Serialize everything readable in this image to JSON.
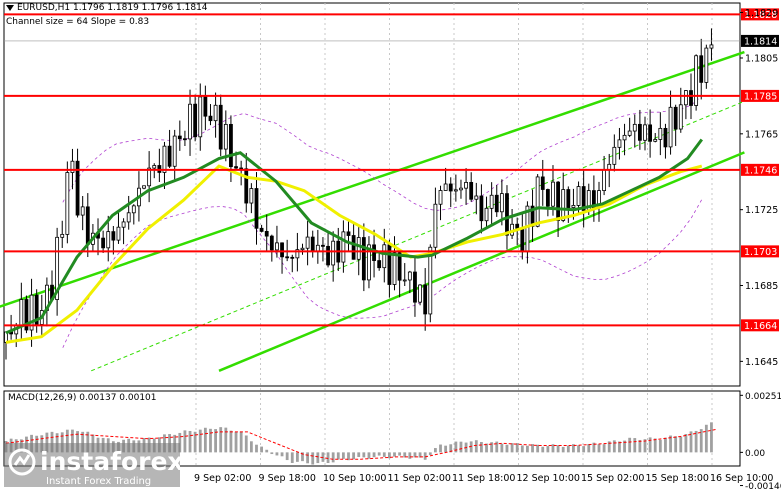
{
  "header": {
    "symbol_line": "EURUSD,H1  1.1796 1.1819 1.1796 1.1814",
    "channel_line": "Channel size = 64 Slope = 0.83"
  },
  "macd_header": "MACD(12,26,9) 0.00137 0.00101",
  "watermark": {
    "brand": "instaforex",
    "tagline": "Instant Forex Trading"
  },
  "colors": {
    "background": "#ffffff",
    "candle": "#000000",
    "level": "#ff0000",
    "channel": "#33dd00",
    "ma_slow": "#228b22",
    "ma_fast": "#f0f000",
    "envelope": "#b040d0",
    "macd_hist": "#a0a0a0",
    "macd_signal": "#ff0000",
    "price_tag": "#000000"
  },
  "chart_data": {
    "type": "candlestick",
    "symbol": "EURUSD",
    "timeframe": "H1",
    "ylim": [
      1.1632,
      1.1834
    ],
    "y_ticks": [
      "1.1829",
      "1.1805",
      "1.1765",
      "1.1725",
      "1.1685",
      "1.1645"
    ],
    "x_ticks": [
      "9 Sep 02:00",
      "9 Sep 18:00",
      "10 Sep 10:00",
      "11 Sep 02:00",
      "11 Sep 18:00",
      "12 Sep 10:00",
      "15 Sep 02:00",
      "15 Sep 18:00",
      "16 Sep 10:00"
    ],
    "levels": [
      {
        "value": 1.1828,
        "label": "1.1828"
      },
      {
        "value": 1.1785,
        "label": "1.1785"
      },
      {
        "value": 1.1746,
        "label": "1.1746"
      },
      {
        "value": 1.1703,
        "label": "1.1703"
      },
      {
        "value": 1.1664,
        "label": "1.1664"
      }
    ],
    "current_price": {
      "value": 1.1814,
      "label": "1.1814"
    },
    "channel": {
      "upper": [
        [
          0,
          1.1675
        ],
        [
          100,
          1.1803
        ]
      ],
      "lower": [
        [
          30,
          1.164
        ],
        [
          100,
          1.1749
        ]
      ],
      "middle": [
        [
          12,
          1.164
        ],
        [
          100,
          1.1776
        ]
      ]
    },
    "candles_x_range": [
      0,
      100
    ],
    "close_path": [
      [
        0,
        1.1655
      ],
      [
        1.5,
        1.1668
      ],
      [
        3,
        1.1672
      ],
      [
        4.5,
        1.1669
      ],
      [
        6,
        1.168
      ],
      [
        7.5,
        1.1705
      ],
      [
        9,
        1.1755
      ],
      [
        10.5,
        1.172
      ],
      [
        12,
        1.171
      ],
      [
        14,
        1.1708
      ],
      [
        16,
        1.1715
      ],
      [
        18,
        1.1728
      ],
      [
        20,
        1.1745
      ],
      [
        22,
        1.175
      ],
      [
        24,
        1.176
      ],
      [
        26,
        1.1772
      ],
      [
        28,
        1.1778
      ],
      [
        30,
        1.177
      ],
      [
        32,
        1.175
      ],
      [
        34,
        1.1735
      ],
      [
        36,
        1.1712
      ],
      [
        38,
        1.1705
      ],
      [
        40,
        1.1698
      ],
      [
        42,
        1.1708
      ],
      [
        44,
        1.1705
      ],
      [
        46,
        1.17
      ],
      [
        48,
        1.1712
      ],
      [
        50,
        1.1698
      ],
      [
        52,
        1.17
      ],
      [
        54,
        1.1696
      ],
      [
        56,
        1.169
      ],
      [
        58,
        1.1682
      ],
      [
        59,
        1.1672
      ],
      [
        60,
        1.1715
      ],
      [
        61,
        1.1738
      ],
      [
        63,
        1.1735
      ],
      [
        65,
        1.1738
      ],
      [
        67,
        1.1722
      ],
      [
        69,
        1.1732
      ],
      [
        71,
        1.1715
      ],
      [
        73,
        1.171
      ],
      [
        75,
        1.1738
      ],
      [
        77,
        1.173
      ],
      [
        79,
        1.1728
      ],
      [
        81,
        1.1732
      ],
      [
        83,
        1.1728
      ],
      [
        84,
        1.1742
      ],
      [
        86,
        1.176
      ],
      [
        88,
        1.1768
      ],
      [
        90,
        1.1765
      ],
      [
        92,
        1.1762
      ],
      [
        94,
        1.1772
      ],
      [
        96,
        1.1785
      ],
      [
        98,
        1.1802
      ],
      [
        100,
        1.1814
      ]
    ],
    "ma_slow": [
      [
        0,
        1.166
      ],
      [
        5,
        1.1668
      ],
      [
        10,
        1.17
      ],
      [
        15,
        1.1722
      ],
      [
        20,
        1.1735
      ],
      [
        25,
        1.1742
      ],
      [
        30,
        1.1752
      ],
      [
        33,
        1.1755
      ],
      [
        38,
        1.174
      ],
      [
        43,
        1.1718
      ],
      [
        48,
        1.1708
      ],
      [
        53,
        1.1702
      ],
      [
        58,
        1.17
      ],
      [
        60,
        1.1701
      ],
      [
        65,
        1.171
      ],
      [
        70,
        1.172
      ],
      [
        75,
        1.1726
      ],
      [
        80,
        1.1725
      ],
      [
        84,
        1.1728
      ],
      [
        88,
        1.1735
      ],
      [
        92,
        1.1742
      ],
      [
        96,
        1.1752
      ],
      [
        98,
        1.1762
      ]
    ],
    "ma_fast": [
      [
        0,
        1.1655
      ],
      [
        5,
        1.1658
      ],
      [
        10,
        1.1672
      ],
      [
        15,
        1.1695
      ],
      [
        20,
        1.1715
      ],
      [
        25,
        1.173
      ],
      [
        30,
        1.1748
      ],
      [
        34,
        1.1742
      ],
      [
        38,
        1.174
      ],
      [
        42,
        1.1735
      ],
      [
        47,
        1.1722
      ],
      [
        52,
        1.1712
      ],
      [
        57,
        1.17
      ],
      [
        60,
        1.1702
      ],
      [
        65,
        1.1708
      ],
      [
        70,
        1.1712
      ],
      [
        75,
        1.1718
      ],
      [
        80,
        1.1722
      ],
      [
        85,
        1.1728
      ],
      [
        90,
        1.1738
      ],
      [
        95,
        1.1745
      ],
      [
        98,
        1.1748
      ]
    ],
    "macd": {
      "ylim": [
        -0.0006,
        0.0027
      ],
      "y_ticks": [
        "0.00251",
        "0.00",
        "-0.00146"
      ],
      "hist_baseline": 0.0,
      "histogram_path": [
        [
          0,
          0.0005
        ],
        [
          5,
          0.0008
        ],
        [
          10,
          0.001
        ],
        [
          15,
          0.0005
        ],
        [
          20,
          0.0006
        ],
        [
          25,
          0.0009
        ],
        [
          30,
          0.0011
        ],
        [
          33,
          0.0009
        ],
        [
          36,
          0.0002
        ],
        [
          40,
          -0.0004
        ],
        [
          44,
          -0.0005
        ],
        [
          48,
          -0.0003
        ],
        [
          52,
          -0.0002
        ],
        [
          56,
          -0.0002
        ],
        [
          59,
          -0.0003
        ],
        [
          61,
          0.0003
        ],
        [
          65,
          0.0005
        ],
        [
          70,
          0.0004
        ],
        [
          75,
          0.0003
        ],
        [
          80,
          0.0003
        ],
        [
          84,
          0.0004
        ],
        [
          88,
          0.0006
        ],
        [
          92,
          0.0006
        ],
        [
          96,
          0.0008
        ],
        [
          100,
          0.00137
        ]
      ],
      "signal_path": [
        [
          0,
          0.0004
        ],
        [
          5,
          0.0006
        ],
        [
          10,
          0.0008
        ],
        [
          15,
          0.0007
        ],
        [
          20,
          0.0006
        ],
        [
          25,
          0.0007
        ],
        [
          30,
          0.0009
        ],
        [
          34,
          0.0009
        ],
        [
          38,
          0.0004
        ],
        [
          42,
          -0.0001
        ],
        [
          46,
          -0.0003
        ],
        [
          50,
          -0.0003
        ],
        [
          55,
          -0.0002
        ],
        [
          59,
          -0.0002
        ],
        [
          62,
          0.0
        ],
        [
          66,
          0.0003
        ],
        [
          70,
          0.0004
        ],
        [
          75,
          0.0003
        ],
        [
          80,
          0.0003
        ],
        [
          85,
          0.0004
        ],
        [
          90,
          0.0005
        ],
        [
          95,
          0.0007
        ],
        [
          100,
          0.00101
        ]
      ]
    }
  }
}
